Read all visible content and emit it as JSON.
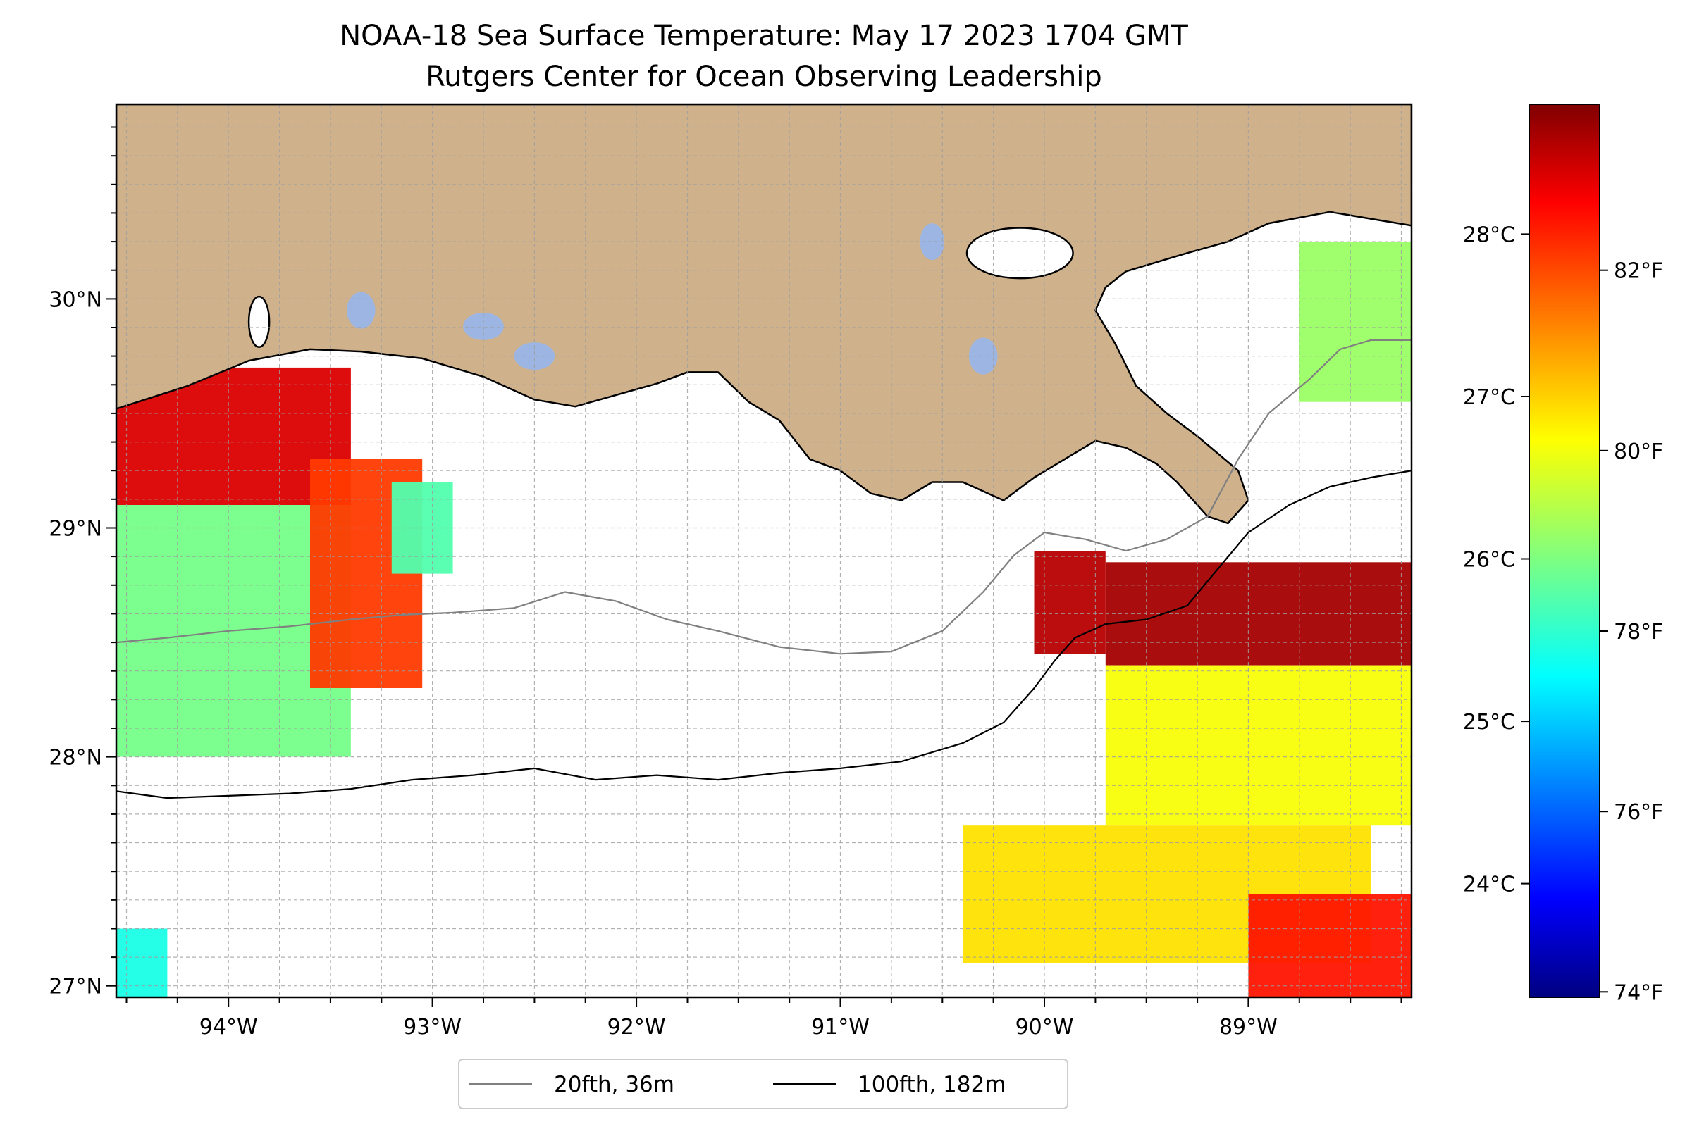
{
  "title": {
    "line1": "NOAA-18 Sea Surface Temperature: May 17 2023 1704 GMT",
    "line2": "Rutgers Center for Ocean Observing Leadership"
  },
  "map": {
    "projection": "plate carree",
    "lon_range": [
      -94.55,
      -88.2
    ],
    "lat_range": [
      26.95,
      30.85
    ],
    "grid": true,
    "land_color": "#cfb28c",
    "lake_color": "#9db5e2",
    "ocean_no_data_color": "#ffffff",
    "lon_ticks": [
      -94,
      -93,
      -92,
      -91,
      -90,
      -89
    ],
    "lon_tick_labels": [
      "94°W",
      "93°W",
      "92°W",
      "91°W",
      "90°W",
      "89°W"
    ],
    "lat_ticks": [
      27,
      28,
      29,
      30
    ],
    "lat_tick_labels": [
      "27°N",
      "28°N",
      "29°N",
      "30°N"
    ]
  },
  "colorbar": {
    "colormap": "jet",
    "celsius_range": [
      23.3,
      28.8
    ],
    "celsius_ticks": [
      24,
      25,
      26,
      27,
      28
    ],
    "celsius_labels": [
      "24°C",
      "25°C",
      "26°C",
      "27°C",
      "28°C"
    ],
    "fahrenheit_ticks": [
      74,
      76,
      78,
      80,
      82
    ],
    "fahrenheit_labels": [
      "74°F",
      "76°F",
      "78°F",
      "80°F",
      "82°F"
    ]
  },
  "legend": {
    "placement": "bottom-center",
    "items": [
      {
        "label": "20fth, 36m",
        "color": "#808080"
      },
      {
        "label": "100fth, 182m",
        "color": "#000000"
      }
    ]
  },
  "chart_data": {
    "type": "heatmap",
    "title": "NOAA-18 Sea Surface Temperature: May 17 2023 1704 GMT",
    "subtitle": "Rutgers Center for Ocean Observing Leadership",
    "value_units": "°C",
    "value_range": [
      23.3,
      28.8
    ],
    "regions": [
      {
        "lon": [
          -94.55,
          -93.4
        ],
        "lat": [
          29.1,
          29.7
        ],
        "sst_c": 28.3
      },
      {
        "lon": [
          -94.55,
          -93.4
        ],
        "lat": [
          28.0,
          29.1
        ],
        "sst_c": 26.0
      },
      {
        "lon": [
          -93.6,
          -93.05
        ],
        "lat": [
          28.3,
          29.3
        ],
        "sst_c": 27.8
      },
      {
        "lon": [
          -93.2,
          -92.9
        ],
        "lat": [
          28.8,
          29.2
        ],
        "sst_c": 25.8
      },
      {
        "lon": [
          -90.05,
          -89.7
        ],
        "lat": [
          28.45,
          28.9
        ],
        "sst_c": 28.5
      },
      {
        "lon": [
          -89.7,
          -88.2
        ],
        "lat": [
          28.4,
          28.85
        ],
        "sst_c": 28.6
      },
      {
        "lon": [
          -89.7,
          -88.2
        ],
        "lat": [
          27.7,
          28.4
        ],
        "sst_c": 26.7
      },
      {
        "lon": [
          -90.4,
          -88.4
        ],
        "lat": [
          27.1,
          27.7
        ],
        "sst_c": 26.9
      },
      {
        "lon": [
          -89.0,
          -88.2
        ],
        "lat": [
          26.95,
          27.4
        ],
        "sst_c": 28.0
      },
      {
        "lon": [
          -88.75,
          -88.2
        ],
        "lat": [
          29.55,
          30.25
        ],
        "sst_c": 26.2
      },
      {
        "lon": [
          -94.55,
          -94.3
        ],
        "lat": [
          26.95,
          27.25
        ],
        "sst_c": 25.5
      }
    ],
    "isobaths": [
      {
        "name": "20fth, 36m",
        "color": "#808080",
        "points": [
          [
            -94.55,
            28.5
          ],
          [
            -94.3,
            28.52
          ],
          [
            -94.0,
            28.55
          ],
          [
            -93.7,
            28.57
          ],
          [
            -93.4,
            28.6
          ],
          [
            -93.15,
            28.62
          ],
          [
            -92.9,
            28.63
          ],
          [
            -92.6,
            28.65
          ],
          [
            -92.35,
            28.72
          ],
          [
            -92.1,
            28.68
          ],
          [
            -91.85,
            28.6
          ],
          [
            -91.6,
            28.55
          ],
          [
            -91.3,
            28.48
          ],
          [
            -91.0,
            28.45
          ],
          [
            -90.75,
            28.46
          ],
          [
            -90.5,
            28.55
          ],
          [
            -90.3,
            28.72
          ],
          [
            -90.15,
            28.88
          ],
          [
            -90.0,
            28.98
          ],
          [
            -89.8,
            28.95
          ],
          [
            -89.6,
            28.9
          ],
          [
            -89.4,
            28.95
          ],
          [
            -89.2,
            29.05
          ],
          [
            -89.05,
            29.3
          ],
          [
            -88.9,
            29.5
          ],
          [
            -88.7,
            29.65
          ],
          [
            -88.55,
            29.78
          ],
          [
            -88.4,
            29.82
          ],
          [
            -88.2,
            29.82
          ]
        ]
      },
      {
        "name": "100fth, 182m",
        "color": "#000000",
        "points": [
          [
            -94.55,
            27.85
          ],
          [
            -94.3,
            27.82
          ],
          [
            -94.0,
            27.83
          ],
          [
            -93.7,
            27.84
          ],
          [
            -93.4,
            27.86
          ],
          [
            -93.1,
            27.9
          ],
          [
            -92.8,
            27.92
          ],
          [
            -92.5,
            27.95
          ],
          [
            -92.2,
            27.9
          ],
          [
            -91.9,
            27.92
          ],
          [
            -91.6,
            27.9
          ],
          [
            -91.3,
            27.93
          ],
          [
            -91.0,
            27.95
          ],
          [
            -90.7,
            27.98
          ],
          [
            -90.4,
            28.06
          ],
          [
            -90.2,
            28.15
          ],
          [
            -90.05,
            28.3
          ],
          [
            -89.95,
            28.42
          ],
          [
            -89.85,
            28.52
          ],
          [
            -89.7,
            28.58
          ],
          [
            -89.5,
            28.6
          ],
          [
            -89.3,
            28.66
          ],
          [
            -89.15,
            28.82
          ],
          [
            -89.0,
            28.98
          ],
          [
            -88.8,
            29.1
          ],
          [
            -88.6,
            29.18
          ],
          [
            -88.4,
            29.22
          ],
          [
            -88.2,
            29.25
          ]
        ]
      }
    ]
  }
}
